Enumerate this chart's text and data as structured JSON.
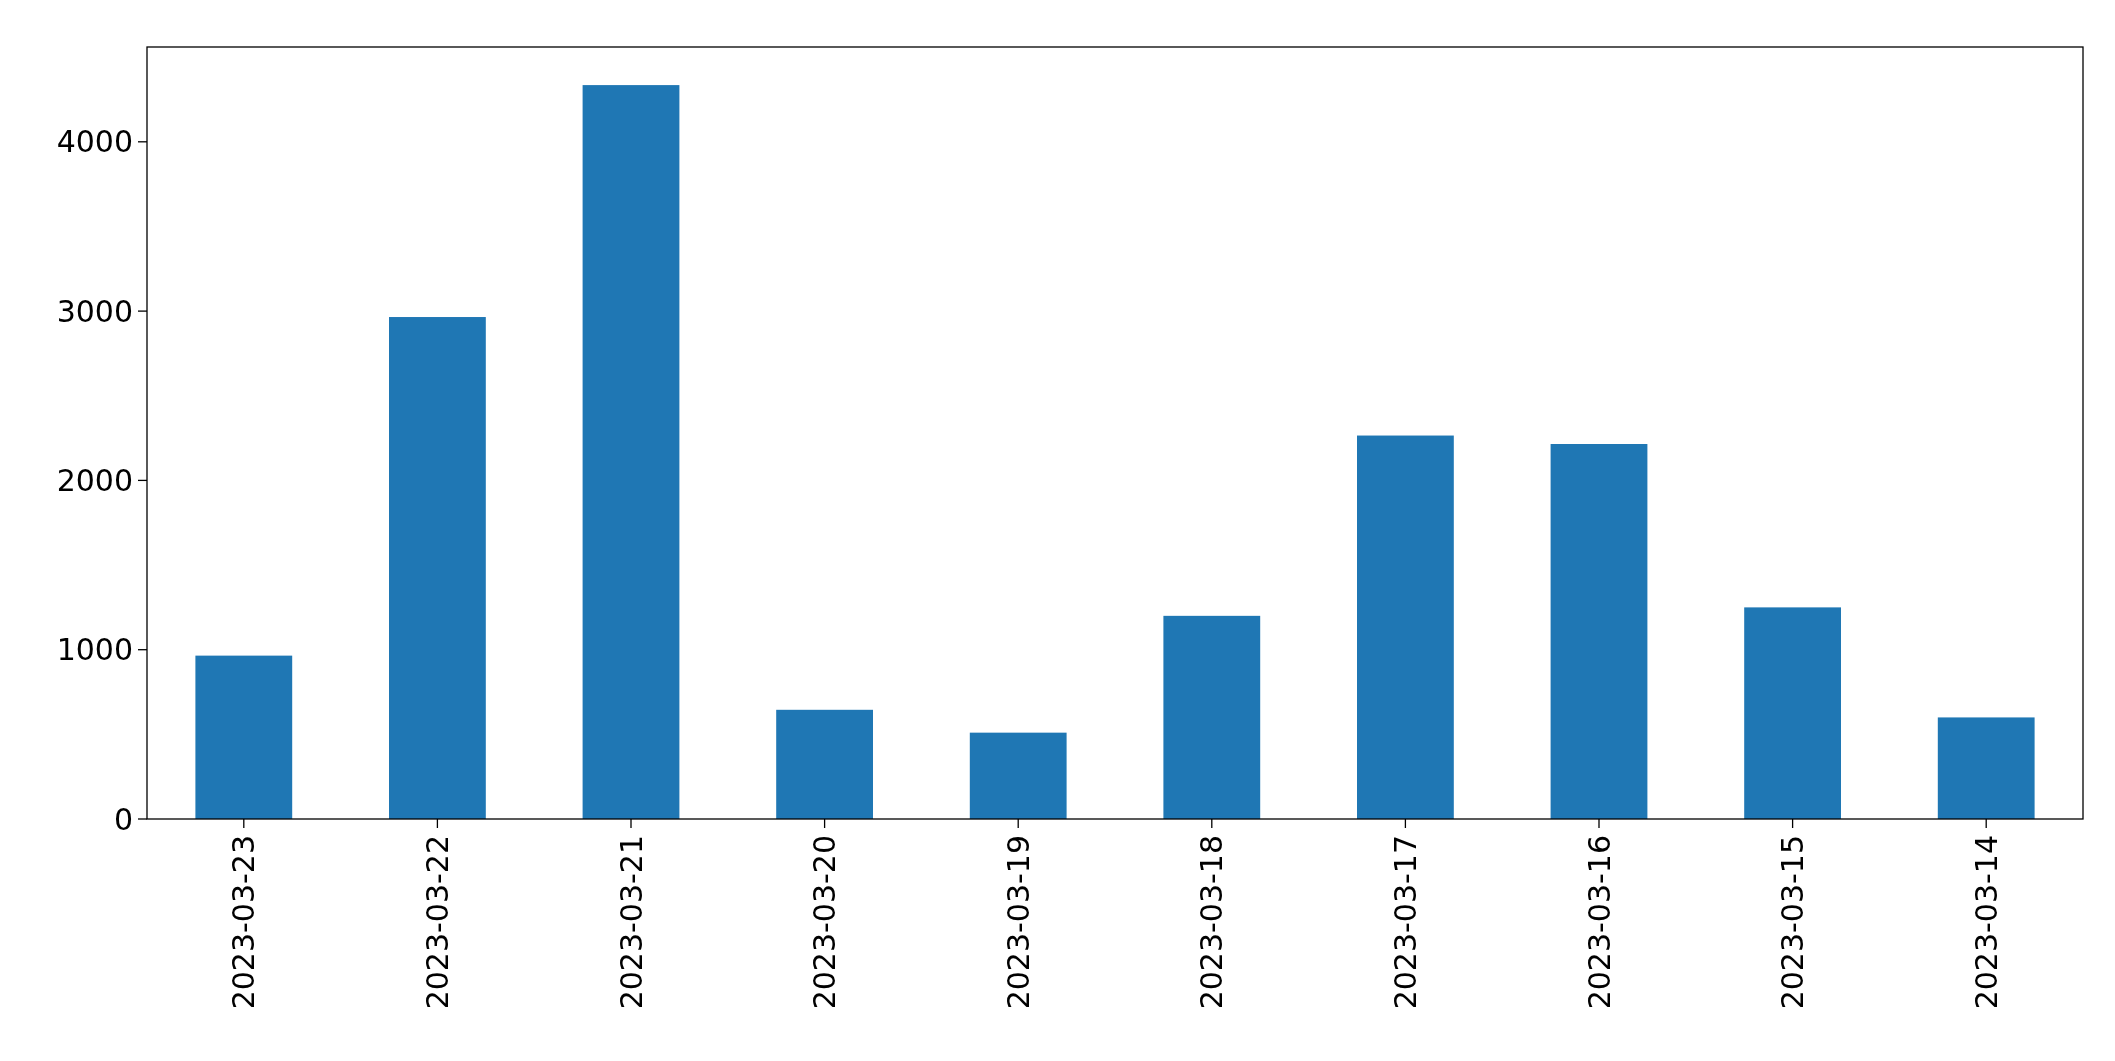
{
  "chart_data": {
    "type": "bar",
    "categories": [
      "2023-03-23",
      "2023-03-22",
      "2023-03-21",
      "2023-03-20",
      "2023-03-19",
      "2023-03-18",
      "2023-03-17",
      "2023-03-16",
      "2023-03-15",
      "2023-03-14"
    ],
    "values": [
      965,
      2965,
      4335,
      645,
      510,
      1200,
      2265,
      2215,
      1250,
      600
    ],
    "color": "#1f77b4",
    "ylim": [
      0,
      4560
    ],
    "yticks": [
      0,
      1000,
      2000,
      3000,
      4000
    ],
    "grid": false
  }
}
